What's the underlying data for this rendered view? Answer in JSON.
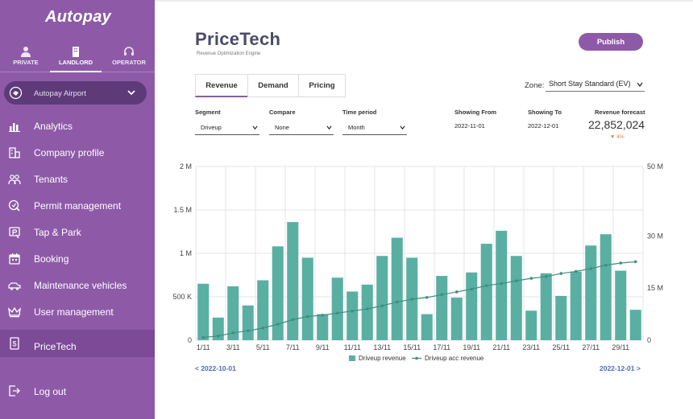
{
  "app": {
    "logo": "Autopay"
  },
  "roles": [
    {
      "label": "PRIVATE",
      "icon": "person-icon"
    },
    {
      "label": "LANDLORD",
      "icon": "building-icon"
    },
    {
      "label": "OPERATOR",
      "icon": "headset-icon"
    }
  ],
  "location": {
    "name": "Autopay Airport",
    "icon": "location-icon"
  },
  "nav": [
    {
      "label": "Analytics",
      "icon": "bar-chart-icon"
    },
    {
      "label": "Company profile",
      "icon": "company-icon"
    },
    {
      "label": "Tenants",
      "icon": "tenants-icon"
    },
    {
      "label": "Permit management",
      "icon": "permit-icon"
    },
    {
      "label": "Tap & Park",
      "icon": "tap-park-icon"
    },
    {
      "label": "Booking",
      "icon": "calendar-icon"
    },
    {
      "label": "Maintenance vehicles",
      "icon": "vehicle-icon"
    },
    {
      "label": "User management",
      "icon": "crown-icon"
    },
    {
      "label": "PriceTech",
      "icon": "price-tag-icon"
    }
  ],
  "logout": {
    "label": "Log out",
    "icon": "logout-icon"
  },
  "header": {
    "title": "PriceTech",
    "subtitle": "Revenue Optimization Engine",
    "publish": "Publish"
  },
  "tabs": [
    "Revenue",
    "Demand",
    "Pricing"
  ],
  "zone": {
    "label": "Zone:",
    "value": "Short Stay Standard (EV)"
  },
  "filters": {
    "segment": {
      "label": "Segment",
      "value": "Driveup"
    },
    "compare": {
      "label": "Compare",
      "value": "None"
    },
    "period": {
      "label": "Time period",
      "value": "Month"
    },
    "from": {
      "label": "Showing From",
      "value": "2022-11-01"
    },
    "to": {
      "label": "Showing To",
      "value": "2022-12-01"
    },
    "forecast": {
      "label": "Revenue forecast",
      "value": "22,852,024",
      "delta": "▼ 4%"
    }
  },
  "nav_dates": {
    "prev": "< 2022-10-01",
    "next": "2022-12-01 >"
  },
  "colors": {
    "brand": "#8e5aa8",
    "bar": "#5aafa3",
    "line": "#3f8f7f"
  },
  "chart_data": {
    "type": "bar",
    "title": "",
    "categories": [
      "1/11",
      "2/11",
      "3/11",
      "4/11",
      "5/11",
      "6/11",
      "7/11",
      "8/11",
      "9/11",
      "10/11",
      "11/11",
      "12/11",
      "13/11",
      "14/11",
      "15/11",
      "16/11",
      "17/11",
      "18/11",
      "19/11",
      "20/11",
      "21/11",
      "22/11",
      "23/11",
      "24/11",
      "25/11",
      "26/11",
      "27/11",
      "28/11",
      "29/11",
      "30/11"
    ],
    "x_tick_labels": [
      "1/11",
      "3/11",
      "5/11",
      "7/11",
      "9/11",
      "11/11",
      "13/11",
      "15/11",
      "17/11",
      "19/11",
      "21/11",
      "23/11",
      "25/11",
      "27/11",
      "29/11"
    ],
    "series": [
      {
        "name": "Driveup revenue",
        "type": "bar",
        "axis": "left",
        "values": [
          650000,
          260000,
          620000,
          400000,
          690000,
          1080000,
          1360000,
          950000,
          300000,
          720000,
          560000,
          640000,
          970000,
          1180000,
          950000,
          300000,
          740000,
          490000,
          780000,
          1110000,
          1260000,
          970000,
          340000,
          770000,
          510000,
          790000,
          1090000,
          1220000,
          800000,
          350000
        ]
      },
      {
        "name": "Driveup acc revenue",
        "type": "line",
        "axis": "right",
        "values": [
          800000,
          1200000,
          2100000,
          2700000,
          3500000,
          4600000,
          5900000,
          6800000,
          7200000,
          7800000,
          8400000,
          9000000,
          9900000,
          11000000,
          11800000,
          12300000,
          13100000,
          13900000,
          14700000,
          15700000,
          16300000,
          17100000,
          17800000,
          18300000,
          19200000,
          19800000,
          20600000,
          21600000,
          22200000,
          22600000
        ]
      }
    ],
    "y_left": {
      "ylim": [
        0,
        2000000
      ],
      "ticks": [
        "0",
        "500 K",
        "1 M",
        "1.5 M",
        "2 M"
      ]
    },
    "y_right": {
      "ylim": [
        0,
        50000000
      ],
      "ticks": [
        "0",
        "15 M",
        "30 M",
        "50 M"
      ],
      "tick_values": [
        0,
        15000000,
        30000000,
        50000000
      ]
    },
    "grid": true,
    "legend": "bottom"
  }
}
